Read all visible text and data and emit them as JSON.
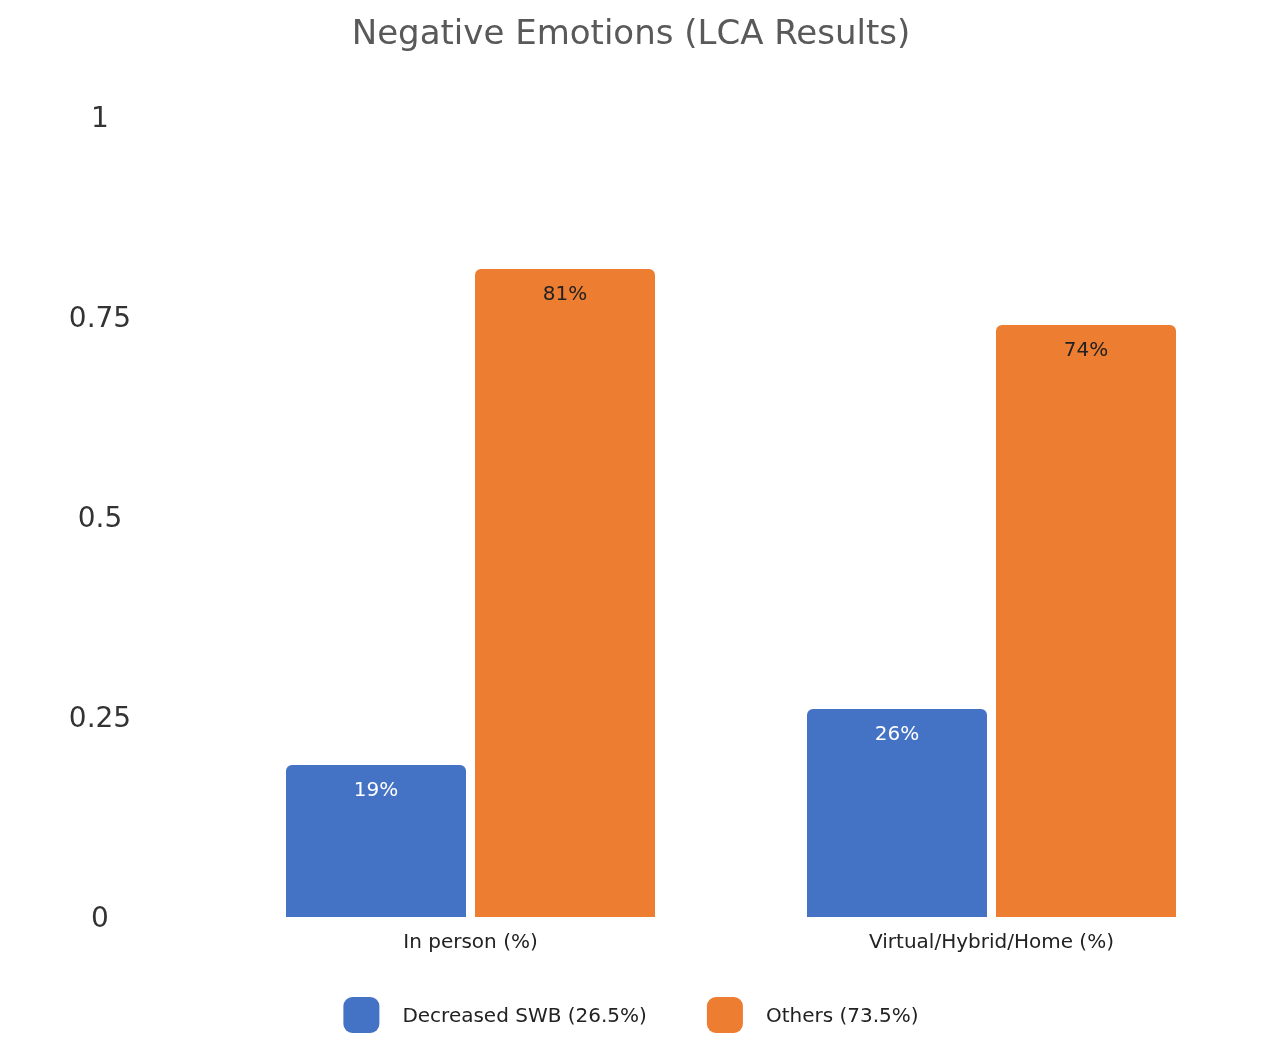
{
  "chart_data": {
    "type": "bar",
    "title": "Negative Emotions (LCA Results)",
    "categories": [
      "In person (%)",
      "Virtual/Hybrid/Home (%)"
    ],
    "series": [
      {
        "name": "Decreased SWB (26.5%)",
        "color": "#4472c4",
        "values": [
          0.19,
          0.26
        ],
        "value_labels": [
          "19%",
          "26%"
        ]
      },
      {
        "name": "Others (73.5%)",
        "color": "#ed7d31",
        "values": [
          0.81,
          0.74
        ],
        "value_labels": [
          "81%",
          "74%"
        ]
      }
    ],
    "ylim": [
      0,
      1
    ],
    "yticks": [
      0,
      0.25,
      0.5,
      0.75,
      1
    ],
    "grid": false,
    "legend": "bottom"
  }
}
